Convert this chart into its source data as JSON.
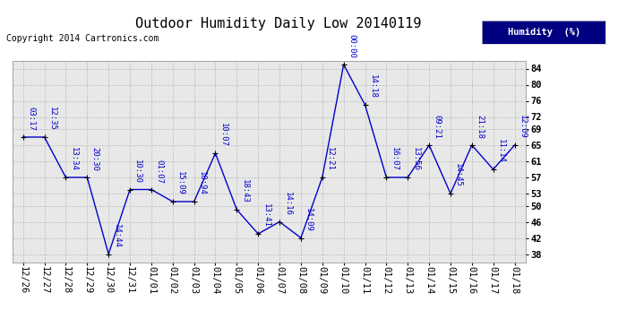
{
  "title": "Outdoor Humidity Daily Low 20140119",
  "copyright": "Copyright 2014 Cartronics.com",
  "legend_label": "Humidity  (%)",
  "x_labels": [
    "12/26",
    "12/27",
    "12/28",
    "12/29",
    "12/30",
    "12/31",
    "01/01",
    "01/02",
    "01/03",
    "01/04",
    "01/05",
    "01/06",
    "01/07",
    "01/08",
    "01/09",
    "01/10",
    "01/11",
    "01/12",
    "01/13",
    "01/14",
    "01/15",
    "01/16",
    "01/17",
    "01/18"
  ],
  "y_values": [
    67,
    67,
    57,
    57,
    38,
    54,
    54,
    51,
    51,
    63,
    49,
    43,
    46,
    42,
    57,
    85,
    75,
    57,
    57,
    65,
    53,
    65,
    59,
    65
  ],
  "time_labels": [
    "03:17",
    "12:35",
    "13:34",
    "20:30",
    "14:44",
    "10:30",
    "01:07",
    "15:09",
    "10:94",
    "10:07",
    "18:43",
    "13:41",
    "14:16",
    "14:09",
    "12:21",
    "00:00",
    "14:18",
    "16:07",
    "13:56",
    "09:21",
    "14:45",
    "21:18",
    "11:14",
    "12:09"
  ],
  "ylim": [
    36,
    86
  ],
  "yticks": [
    38,
    42,
    46,
    50,
    53,
    57,
    61,
    65,
    69,
    72,
    76,
    80,
    84
  ],
  "line_color": "#0000cc",
  "marker_color": "#000000",
  "bg_color": "#ffffff",
  "plot_bg_color": "#e8e8e8",
  "grid_color": "#bbbbbb",
  "title_fontsize": 11,
  "copyright_fontsize": 7,
  "tick_fontsize": 7.5,
  "time_label_fontsize": 6.5
}
